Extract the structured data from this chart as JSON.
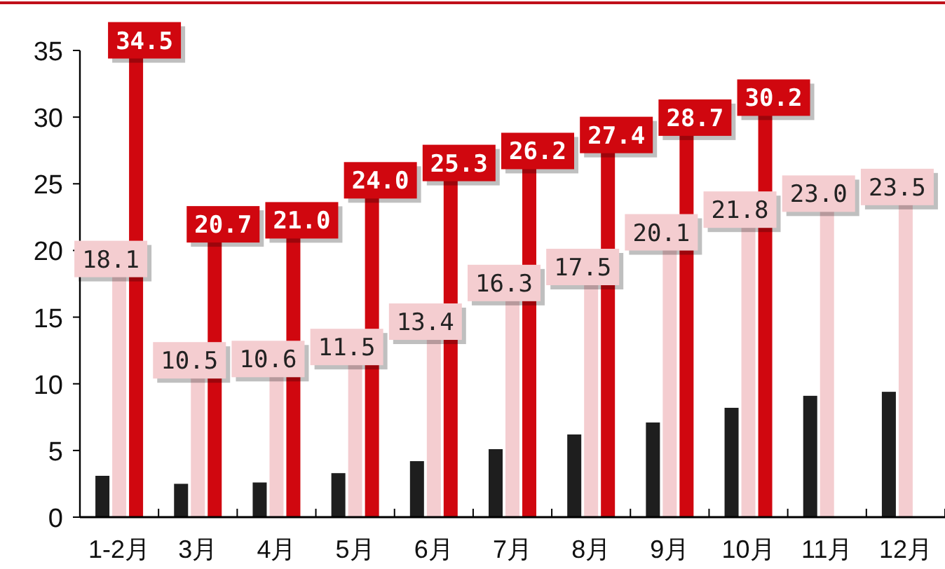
{
  "chart_data": {
    "type": "bar",
    "categories": [
      "1-2月",
      "3月",
      "4月",
      "5月",
      "6月",
      "7月",
      "8月",
      "9月",
      "10月",
      "11月",
      "12月"
    ],
    "series": [
      {
        "color": "#1e1e1e",
        "values": [
          3.1,
          2.5,
          2.6,
          3.3,
          4.2,
          5.1,
          6.2,
          7.1,
          8.2,
          9.1,
          9.4
        ]
      },
      {
        "color": "#f4cdd0",
        "values": [
          18.1,
          10.5,
          10.6,
          11.5,
          13.4,
          16.3,
          17.5,
          20.1,
          21.8,
          23.0,
          23.5
        ],
        "value_labels": [
          "18.1",
          "10.5",
          "10.6",
          "11.5",
          "13.4",
          "16.3",
          "17.5",
          "20.1",
          "21.8",
          "23.0",
          "23.5"
        ]
      },
      {
        "color": "#d0070f",
        "values": [
          34.5,
          20.7,
          21.0,
          24.0,
          25.3,
          26.2,
          27.4,
          28.7,
          30.2,
          null,
          null
        ],
        "value_labels": [
          "34.5",
          "20.7",
          "21.0",
          "24.0",
          "25.3",
          "26.2",
          "27.4",
          "28.7",
          "30.2",
          null,
          null
        ]
      }
    ],
    "ylim": [
      0,
      35
    ],
    "yticks": [
      0,
      5,
      10,
      15,
      20,
      25,
      30,
      35
    ]
  }
}
